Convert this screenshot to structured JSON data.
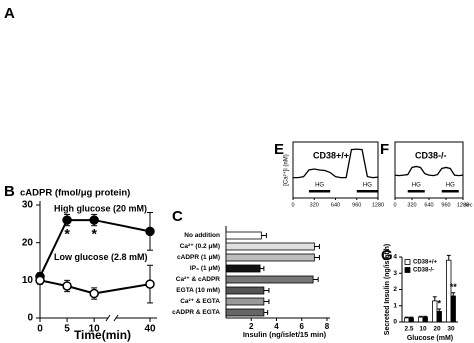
{
  "panel_a_label": "A",
  "chart_data": [
    {
      "type": "line",
      "panel": "B",
      "title": "cADPR (fmol/μg protein)",
      "x_label": "Time(min)",
      "x": [
        0,
        5,
        10,
        40
      ],
      "xlim": [
        0,
        40
      ],
      "xticks": [
        0,
        5,
        10,
        40
      ],
      "ylim": [
        0,
        30
      ],
      "yticks": [
        0,
        10,
        20,
        30
      ],
      "series": [
        {
          "name": "High glucose (20 mM)",
          "marker": "filled",
          "color": "#000000",
          "values": [
            11,
            26,
            26,
            23
          ],
          "errors": [
            1,
            1.5,
            1.5,
            5
          ],
          "significance": [
            null,
            "*",
            "*",
            null
          ]
        },
        {
          "name": "Low glucose (2.8 mM)",
          "marker": "open",
          "color": "#000000",
          "values": [
            10,
            8.5,
            6.5,
            9
          ],
          "errors": [
            1,
            1.5,
            1.5,
            5
          ],
          "significance": [
            null,
            null,
            null,
            null
          ]
        }
      ]
    },
    {
      "type": "hbar",
      "panel": "C",
      "x_label": "Insulin (ng/islet/15 min)",
      "categories": [
        "No addition",
        "Ca²⁺ (0.2 μM)",
        "cADPR (1 μM)",
        "IP₃ (1 μM)",
        "Ca²⁺ & cADPR",
        "EGTA (10 mM)",
        "Ca²⁺ & EGTA",
        "cADPR & EGTA"
      ],
      "values": [
        2.8,
        7.0,
        7.0,
        2.7,
        6.9,
        3.0,
        3.0,
        3.0
      ],
      "errors": [
        0.4,
        0.4,
        0.4,
        0.3,
        0.4,
        0.4,
        0.4,
        0.3
      ],
      "colors": [
        "#ffffff",
        "#e0e0e0",
        "#bdbdbd",
        "#111111",
        "#777777",
        "#555555",
        "#999999",
        "#666666"
      ],
      "xlim": [
        0,
        8
      ],
      "xticks": [
        2,
        4,
        6,
        8
      ]
    },
    {
      "type": "trace",
      "panel": "E",
      "title": "CD38+/+",
      "y_label": "[Ca²⁺]i (nM)",
      "x": [
        0,
        80,
        160,
        240,
        320,
        400,
        480,
        560,
        640,
        720,
        800,
        880,
        960,
        1040,
        1120,
        1200,
        1280
      ],
      "values": [
        40,
        40,
        42,
        55,
        57,
        55,
        54,
        50,
        42,
        40,
        40,
        95,
        96,
        95,
        42,
        40,
        41
      ],
      "xlim": [
        0,
        1280
      ],
      "xticks": [
        0,
        320,
        640,
        960,
        1280
      ],
      "ylim": [
        0,
        110
      ],
      "stimulus": {
        "label": "HG",
        "intervals": [
          [
            240,
            560
          ],
          [
            960,
            1280
          ]
        ]
      }
    },
    {
      "type": "trace",
      "panel": "F",
      "title": "CD38-/-",
      "x_label": "sec",
      "x": [
        0,
        80,
        160,
        240,
        320,
        400,
        480,
        560,
        640,
        720,
        800,
        880,
        960,
        1040,
        1120,
        1200,
        1280
      ],
      "values": [
        45,
        44,
        45,
        46,
        60,
        62,
        60,
        48,
        45,
        44,
        46,
        58,
        60,
        58,
        45,
        44,
        45
      ],
      "xlim": [
        0,
        1280
      ],
      "xticks": [
        0,
        320,
        640,
        960,
        1280
      ],
      "ylim": [
        0,
        110
      ],
      "stimulus": {
        "label": "HG",
        "intervals": [
          [
            240,
            560
          ],
          [
            880,
            1200
          ]
        ]
      }
    },
    {
      "type": "grouped_bar",
      "panel": "G",
      "y_label": "Secreted Insulin (ng/islet/h)",
      "x_label": "Glucose (mM)",
      "categories": [
        "2.5",
        "10",
        "20",
        "30"
      ],
      "ylim": [
        0,
        4
      ],
      "yticks": [
        0,
        1,
        2,
        3,
        4
      ],
      "series": [
        {
          "name": "CD38+/+",
          "color": "#ffffff",
          "values": [
            0.25,
            0.3,
            1.3,
            3.8
          ],
          "errors": [
            0.05,
            0.05,
            0.25,
            0.3
          ]
        },
        {
          "name": "CD38-/-",
          "color": "#000000",
          "values": [
            0.25,
            0.3,
            0.65,
            1.6
          ],
          "errors": [
            0.05,
            0.05,
            0.15,
            0.2
          ]
        }
      ],
      "significance": [
        null,
        null,
        "*",
        "**"
      ]
    }
  ]
}
